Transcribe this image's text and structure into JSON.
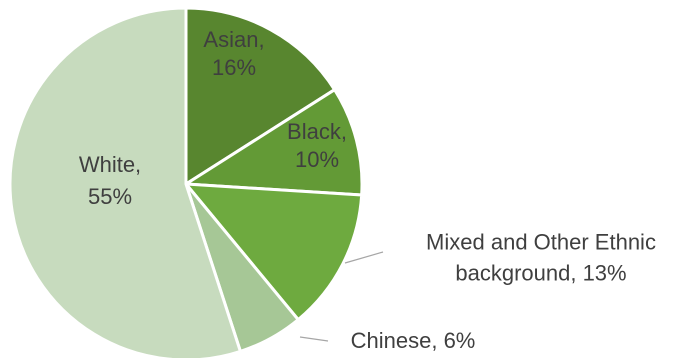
{
  "chart_data": {
    "type": "pie",
    "title": "",
    "slices": [
      {
        "name": "Asian",
        "value": 16,
        "label": [
          "Asian,",
          "16%"
        ],
        "color": "#58862f",
        "text_color": "#3f3f3f",
        "leader": false
      },
      {
        "name": "Black",
        "value": 10,
        "label": [
          "Black,",
          "10%"
        ],
        "color": "#639a36",
        "text_color": "#3f3f3f",
        "leader": false
      },
      {
        "name": "Mixed and Other Ethnic background",
        "value": 13,
        "label": [
          "Mixed and Other Ethnic",
          "background, 13%"
        ],
        "color": "#6eaa3f",
        "text_color": "#3f3f3f",
        "leader": true
      },
      {
        "name": "Chinese",
        "value": 6,
        "label": [
          "Chinese, 6%"
        ],
        "color": "#a6c796",
        "text_color": "#3f3f3f",
        "leader": true
      },
      {
        "name": "White",
        "value": 55,
        "label": [
          "White,",
          "55%"
        ],
        "color": "#c7dbbe",
        "text_color": "#3f3f3f",
        "leader": false
      }
    ],
    "start_angle_deg": 0,
    "direction": "clockwise",
    "legend": "none",
    "slice_border_color": "#ffffff",
    "leader_color": "#a6a6a6"
  }
}
